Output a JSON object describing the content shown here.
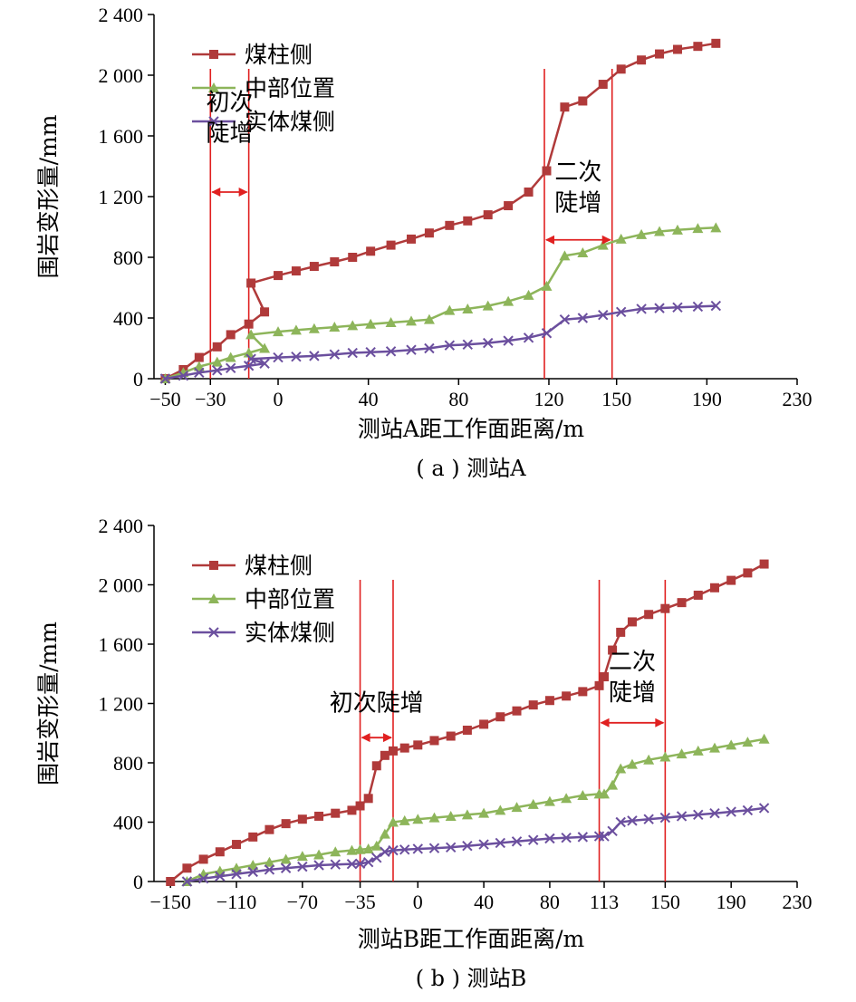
{
  "chart_data": [
    {
      "type": "line",
      "caption": "( a ) 测站A",
      "xlabel": "测站A距工作面距离/m",
      "ylabel": "围岩变形量/mm",
      "xlim": [
        -55,
        230
      ],
      "ylim": [
        0,
        2400
      ],
      "xticks": [
        -50,
        -30,
        0,
        40,
        80,
        120,
        150,
        190,
        230
      ],
      "xtick_labels": [
        "−50",
        "−30",
        "0",
        "40",
        "80",
        "120",
        "150",
        "190",
        "230"
      ],
      "yticks": [
        0,
        400,
        800,
        1200,
        1600,
        2000,
        2400
      ],
      "ytick_labels": [
        "0",
        "400",
        "800",
        "1 200",
        "1 600",
        "2 000",
        "2 400"
      ],
      "legend_position": "top-left",
      "grid": false,
      "series": [
        {
          "name": "煤柱侧",
          "color": "#b03a3a",
          "marker": "square",
          "x": [
            -50,
            -42,
            -35,
            -27,
            -21,
            -13,
            -6,
            -12,
            0,
            8,
            16,
            25,
            33,
            41,
            50,
            59,
            67,
            76,
            84,
            93,
            102,
            111,
            119,
            127,
            135,
            144,
            152,
            161,
            169,
            177,
            186,
            194
          ],
          "y": [
            0,
            60,
            140,
            210,
            290,
            360,
            440,
            630,
            680,
            710,
            740,
            770,
            800,
            840,
            880,
            920,
            960,
            1010,
            1040,
            1080,
            1140,
            1230,
            1370,
            1790,
            1830,
            1940,
            2040,
            2100,
            2140,
            2170,
            2190,
            2210
          ]
        },
        {
          "name": "中部位置",
          "color": "#8db55a",
          "marker": "triangle",
          "x": [
            -50,
            -42,
            -35,
            -27,
            -21,
            -13,
            -6,
            -12,
            0,
            8,
            16,
            25,
            33,
            41,
            50,
            59,
            67,
            76,
            84,
            93,
            102,
            111,
            119,
            127,
            135,
            144,
            152,
            161,
            169,
            177,
            186,
            194
          ],
          "y": [
            0,
            40,
            80,
            110,
            140,
            170,
            200,
            290,
            310,
            320,
            330,
            340,
            350,
            360,
            370,
            380,
            390,
            450,
            460,
            480,
            510,
            550,
            610,
            810,
            830,
            880,
            920,
            950,
            970,
            980,
            990,
            995
          ]
        },
        {
          "name": "实体煤侧",
          "color": "#6b4f9e",
          "marker": "x",
          "x": [
            -50,
            -42,
            -35,
            -27,
            -21,
            -13,
            -6,
            -12,
            0,
            8,
            16,
            25,
            33,
            41,
            50,
            59,
            67,
            76,
            84,
            93,
            102,
            111,
            119,
            127,
            135,
            144,
            152,
            161,
            169,
            177,
            186,
            194
          ],
          "y": [
            0,
            20,
            40,
            55,
            70,
            85,
            100,
            130,
            140,
            145,
            150,
            160,
            170,
            175,
            180,
            190,
            200,
            220,
            225,
            235,
            250,
            270,
            300,
            390,
            400,
            420,
            440,
            460,
            465,
            470,
            475,
            480
          ]
        }
      ],
      "vlines": [
        -30,
        -13,
        118,
        148
      ],
      "annotations": [
        {
          "text": [
            "初次",
            "陡增"
          ],
          "x1": -30,
          "x2": -13
        },
        {
          "text": [
            "二次",
            "陡增"
          ],
          "x1": 118,
          "x2": 148
        }
      ]
    },
    {
      "type": "line",
      "caption": "( b ) 测站B",
      "xlabel": "测站B距工作面距离/m",
      "ylabel": "围岩变形量/mm",
      "xlim": [
        -160,
        230
      ],
      "ylim": [
        0,
        2400
      ],
      "xticks": [
        -150,
        -110,
        -70,
        -35,
        0,
        40,
        80,
        113,
        150,
        190,
        230
      ],
      "xtick_labels": [
        "−150",
        "−110",
        "−70",
        "−35",
        "0",
        "40",
        "80",
        "113",
        "150",
        "190",
        "230"
      ],
      "yticks": [
        0,
        400,
        800,
        1200,
        1600,
        2000,
        2400
      ],
      "ytick_labels": [
        "0",
        "400",
        "800",
        "1 200",
        "1 600",
        "2 000",
        "2 400"
      ],
      "legend_position": "top-left",
      "grid": false,
      "series": [
        {
          "name": "煤柱侧",
          "color": "#b03a3a",
          "marker": "square",
          "x": [
            -150,
            -140,
            -130,
            -120,
            -110,
            -100,
            -90,
            -80,
            -70,
            -60,
            -50,
            -40,
            -35,
            -30,
            -25,
            -20,
            -15,
            -8,
            0,
            10,
            20,
            30,
            40,
            50,
            60,
            70,
            80,
            90,
            100,
            110,
            113,
            118,
            123,
            130,
            140,
            150,
            160,
            170,
            180,
            190,
            200,
            210
          ],
          "y": [
            0,
            90,
            150,
            200,
            250,
            300,
            350,
            390,
            420,
            440,
            460,
            480,
            510,
            560,
            780,
            850,
            880,
            900,
            920,
            950,
            980,
            1020,
            1060,
            1110,
            1150,
            1190,
            1220,
            1250,
            1280,
            1320,
            1380,
            1560,
            1680,
            1750,
            1800,
            1840,
            1880,
            1930,
            1980,
            2030,
            2080,
            2140
          ]
        },
        {
          "name": "中部位置",
          "color": "#8db55a",
          "marker": "triangle",
          "x": [
            -140,
            -130,
            -120,
            -110,
            -100,
            -90,
            -80,
            -70,
            -60,
            -50,
            -40,
            -35,
            -30,
            -25,
            -20,
            -15,
            -8,
            0,
            10,
            20,
            30,
            40,
            50,
            60,
            70,
            80,
            90,
            100,
            110,
            113,
            118,
            123,
            130,
            140,
            150,
            160,
            170,
            180,
            190,
            200,
            210
          ],
          "y": [
            0,
            50,
            70,
            90,
            110,
            130,
            150,
            170,
            180,
            200,
            210,
            215,
            220,
            240,
            320,
            400,
            410,
            420,
            430,
            440,
            450,
            460,
            480,
            500,
            520,
            540,
            560,
            580,
            590,
            590,
            650,
            760,
            790,
            820,
            840,
            860,
            880,
            900,
            920,
            940,
            960
          ]
        },
        {
          "name": "实体煤侧",
          "color": "#6b4f9e",
          "marker": "x",
          "x": [
            -140,
            -130,
            -120,
            -110,
            -100,
            -90,
            -80,
            -70,
            -60,
            -50,
            -40,
            -35,
            -30,
            -25,
            -20,
            -15,
            -8,
            0,
            10,
            20,
            30,
            40,
            50,
            60,
            70,
            80,
            90,
            100,
            110,
            113,
            118,
            123,
            130,
            140,
            150,
            160,
            170,
            180,
            190,
            200,
            210
          ],
          "y": [
            0,
            20,
            35,
            50,
            65,
            80,
            90,
            100,
            110,
            115,
            118,
            120,
            130,
            160,
            200,
            210,
            215,
            220,
            225,
            230,
            240,
            250,
            260,
            270,
            280,
            290,
            295,
            300,
            305,
            305,
            340,
            400,
            410,
            420,
            430,
            440,
            450,
            460,
            470,
            480,
            495
          ]
        }
      ],
      "vlines": [
        -35,
        -15,
        110,
        150
      ],
      "annotations": [
        {
          "text": [
            "初次陡增"
          ],
          "x1": -35,
          "x2": -15
        },
        {
          "text": [
            "二次",
            "陡增"
          ],
          "x1": 110,
          "x2": 150
        }
      ]
    }
  ]
}
